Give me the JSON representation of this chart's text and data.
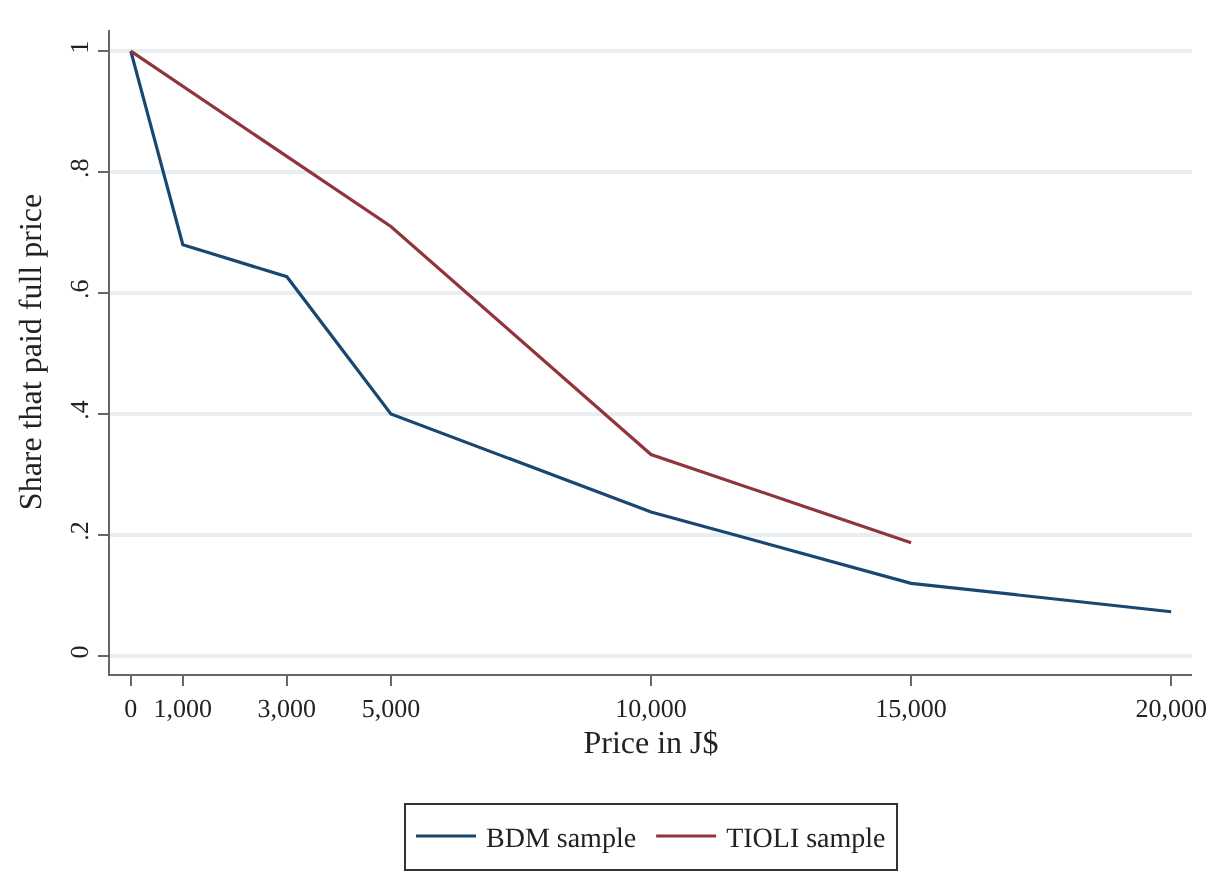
{
  "chart_data": {
    "type": "line",
    "xlabel": "Price in J$",
    "ylabel": "Share that paid full price",
    "series": [
      {
        "name": "BDM sample",
        "color": "#1a476f",
        "x": [
          0,
          1000,
          3000,
          5000,
          10000,
          15000,
          20000
        ],
        "values": [
          1,
          0.68,
          0.627,
          0.4,
          0.238,
          0.12,
          0.073
        ]
      },
      {
        "name": "TIOLI sample",
        "color": "#90353b",
        "x": [
          0,
          5000,
          10000,
          15000
        ],
        "values": [
          1,
          0.71,
          0.333,
          0.187
        ]
      }
    ],
    "xlim": [
      -400,
      20400
    ],
    "xticks": [
      {
        "value": 0,
        "label": "0"
      },
      {
        "value": 1000,
        "label": "1,000"
      },
      {
        "value": 3000,
        "label": "3,000"
      },
      {
        "value": 5000,
        "label": "5,000"
      },
      {
        "value": 10000,
        "label": "10,000"
      },
      {
        "value": 15000,
        "label": "15,000"
      },
      {
        "value": 20000,
        "label": "20,000"
      }
    ],
    "ylim": [
      -0.03,
      1.035
    ],
    "yticks": [
      0,
      {
        "value": 0.2,
        "label": ".2"
      },
      {
        "value": 0.4,
        "label": ".4"
      },
      {
        "value": 0.6,
        "label": ".6"
      },
      {
        "value": 0.8,
        "label": ".8"
      },
      1
    ],
    "grid": "y",
    "legend": "bottom",
    "line_style": "solid",
    "marker": "none"
  }
}
